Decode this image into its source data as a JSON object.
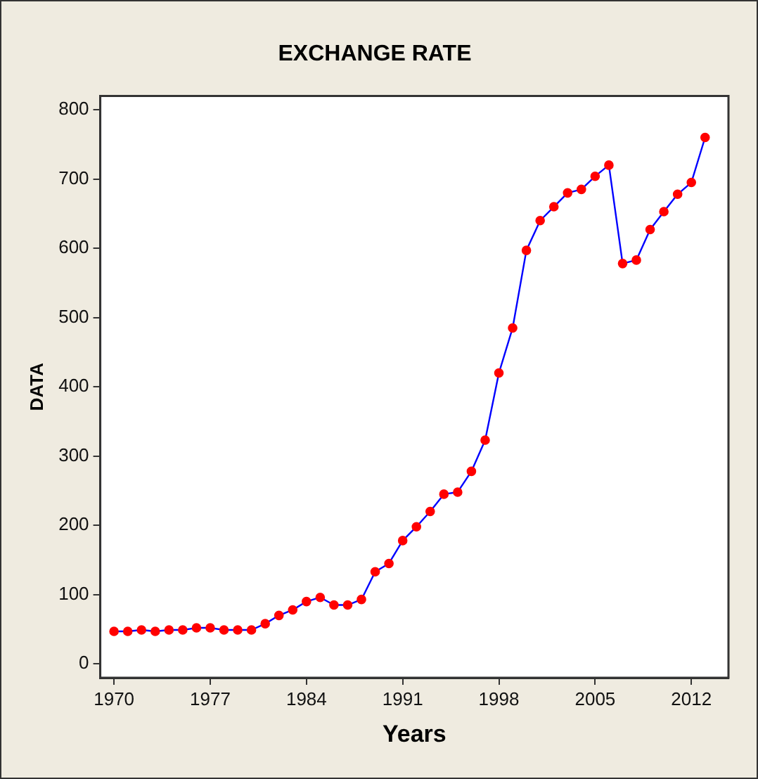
{
  "chart_data": {
    "type": "line",
    "title": "EXCHANGE RATE",
    "xlabel": "Years",
    "ylabel": "DATA",
    "x": [
      1970,
      1971,
      1972,
      1973,
      1974,
      1975,
      1976,
      1977,
      1978,
      1979,
      1980,
      1981,
      1982,
      1983,
      1984,
      1985,
      1986,
      1987,
      1988,
      1989,
      1990,
      1991,
      1992,
      1993,
      1994,
      1995,
      1996,
      1997,
      1998,
      1999,
      2000,
      2001,
      2002,
      2003,
      2004,
      2005,
      2006,
      2007,
      2008,
      2009,
      2010,
      2011,
      2012,
      2013
    ],
    "series": [
      {
        "color": "#0000ff",
        "colors": [
          "#ff0000",
          "#ff0000",
          "#ff0000",
          "#ff0000",
          "#ff0000",
          "#ff0000",
          "#ff0000",
          "#ff0000",
          "#ff0000",
          "#ff0000",
          "#ff0000",
          "#ff0000",
          "#ff0000",
          "#ff0000",
          "#ff0000",
          "#ff0000",
          "#ff0000",
          "#ff0000",
          "#ff0000",
          "#ff0000",
          "#ff0000",
          "#ff0000",
          "#ff0000",
          "#ff0000",
          "#ff0000",
          "#ff0000",
          "#ff0000",
          "#ff0000",
          "#ff0000",
          "#ff0000",
          "#ff0000",
          "#ff0000",
          "#ff0000",
          "#ff0000",
          "#ff0000",
          "#ff0000",
          "#ff0000",
          "#ff0000",
          "#ff0000",
          "#ff0000",
          "#ff0000",
          "#ff0000",
          "#ff0000",
          "#ff0000"
        ],
        "values": [
          47,
          47,
          49,
          47,
          49,
          49,
          52,
          52,
          49,
          49,
          49,
          58,
          70,
          78,
          90,
          96,
          85,
          85,
          93,
          133,
          145,
          178,
          198,
          220,
          245,
          248,
          278,
          323,
          420,
          485,
          597,
          640,
          660,
          680,
          685,
          704,
          720,
          578,
          583,
          627,
          653,
          678,
          695,
          760
        ]
      }
    ],
    "xlim": [
      1969,
      2014.7
    ],
    "xticks": [
      1970,
      1977,
      1984,
      1991,
      1998,
      2005,
      2012
    ],
    "ylim": [
      -20,
      820
    ],
    "yticks": [
      0,
      100,
      200,
      300,
      400,
      500,
      600,
      700,
      800
    ],
    "grid": false,
    "legend": false,
    "marker": "circle",
    "line_style": "solid"
  }
}
